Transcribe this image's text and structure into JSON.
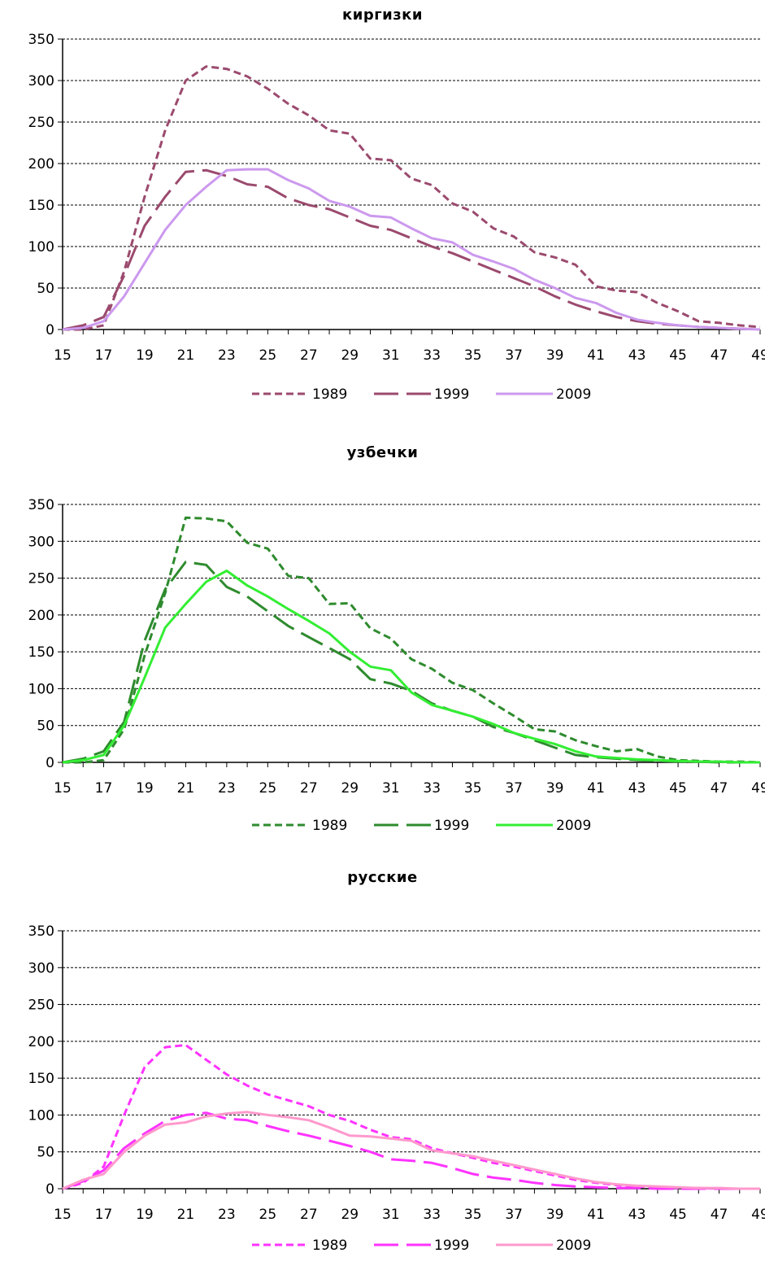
{
  "chart_data": [
    {
      "type": "line",
      "title": "киргизки",
      "ylim": [
        0,
        350
      ],
      "yticks": [
        "0",
        "50",
        "100",
        "150",
        "200",
        "250",
        "300",
        "350"
      ],
      "xlim": [
        15,
        49
      ],
      "xticks": [
        "15",
        "17",
        "19",
        "21",
        "23",
        "25",
        "27",
        "29",
        "31",
        "33",
        "35",
        "37",
        "39",
        "41",
        "43",
        "45",
        "47",
        "49"
      ],
      "grid": true,
      "legend": "bottom",
      "x": [
        15,
        16,
        17,
        18,
        19,
        20,
        21,
        22,
        23,
        24,
        25,
        26,
        27,
        28,
        29,
        30,
        31,
        32,
        33,
        34,
        35,
        36,
        37,
        38,
        39,
        40,
        41,
        42,
        43,
        44,
        45,
        46,
        47,
        48,
        49
      ],
      "series": [
        {
          "name": "1989",
          "color": "#9b4a6e",
          "dash": "dotted",
          "values": [
            0,
            0,
            5,
            70,
            160,
            240,
            300,
            317,
            314,
            305,
            290,
            272,
            258,
            240,
            236,
            206,
            204,
            182,
            174,
            152,
            142,
            122,
            112,
            93,
            87,
            78,
            52,
            47,
            45,
            32,
            22,
            10,
            8,
            5,
            3
          ]
        },
        {
          "name": "1999",
          "color": "#9b4a6e",
          "dash": "long",
          "values": [
            0,
            5,
            15,
            65,
            125,
            160,
            190,
            192,
            185,
            175,
            172,
            158,
            150,
            145,
            135,
            125,
            120,
            110,
            100,
            92,
            82,
            72,
            62,
            52,
            40,
            30,
            22,
            15,
            10,
            7,
            5,
            3,
            2,
            1,
            0
          ]
        },
        {
          "name": "2009",
          "color": "#cc99ee",
          "dash": "solid",
          "values": [
            0,
            2,
            10,
            40,
            80,
            120,
            150,
            172,
            192,
            193,
            193,
            180,
            170,
            155,
            148,
            137,
            135,
            122,
            110,
            105,
            90,
            82,
            73,
            60,
            50,
            38,
            32,
            20,
            12,
            8,
            5,
            3,
            2,
            1,
            0
          ]
        }
      ]
    },
    {
      "type": "line",
      "title": "узбечки",
      "ylim": [
        0,
        350
      ],
      "yticks": [
        "0",
        "50",
        "100",
        "150",
        "200",
        "250",
        "300",
        "350"
      ],
      "xlim": [
        15,
        49
      ],
      "xticks": [
        "15",
        "17",
        "19",
        "21",
        "23",
        "25",
        "27",
        "29",
        "31",
        "33",
        "35",
        "37",
        "39",
        "41",
        "43",
        "45",
        "47",
        "49"
      ],
      "grid": true,
      "legend": "bottom",
      "x": [
        15,
        16,
        17,
        18,
        19,
        20,
        21,
        22,
        23,
        24,
        25,
        26,
        27,
        28,
        29,
        30,
        31,
        32,
        33,
        34,
        35,
        36,
        37,
        38,
        39,
        40,
        41,
        42,
        43,
        44,
        45,
        46,
        47,
        48,
        49
      ],
      "series": [
        {
          "name": "1989",
          "color": "#2e8b2e",
          "dash": "dotted",
          "values": [
            0,
            0,
            3,
            45,
            145,
            230,
            332,
            331,
            327,
            298,
            290,
            253,
            250,
            215,
            216,
            182,
            168,
            140,
            127,
            108,
            98,
            80,
            63,
            45,
            42,
            30,
            22,
            15,
            18,
            8,
            3,
            2,
            1,
            1,
            0
          ]
        },
        {
          "name": "1999",
          "color": "#2e8b2e",
          "dash": "long",
          "values": [
            0,
            5,
            15,
            55,
            165,
            235,
            272,
            268,
            238,
            225,
            205,
            185,
            170,
            155,
            140,
            113,
            107,
            97,
            80,
            70,
            62,
            48,
            40,
            30,
            20,
            10,
            7,
            5,
            3,
            2,
            1,
            1,
            0,
            0,
            0
          ]
        },
        {
          "name": "2009",
          "color": "#33ee33",
          "dash": "solid",
          "values": [
            0,
            3,
            10,
            50,
            115,
            183,
            215,
            245,
            260,
            240,
            225,
            208,
            192,
            175,
            150,
            130,
            125,
            95,
            78,
            70,
            62,
            52,
            40,
            32,
            25,
            15,
            8,
            6,
            4,
            3,
            2,
            1,
            1,
            0,
            0
          ]
        }
      ]
    },
    {
      "type": "line",
      "title": "русские",
      "ylim": [
        0,
        350
      ],
      "yticks": [
        "0",
        "50",
        "100",
        "150",
        "200",
        "250",
        "300",
        "350"
      ],
      "xlim": [
        15,
        49
      ],
      "xticks": [
        "15",
        "17",
        "19",
        "21",
        "23",
        "25",
        "27",
        "29",
        "31",
        "33",
        "35",
        "37",
        "39",
        "41",
        "43",
        "45",
        "47",
        "49"
      ],
      "grid": true,
      "legend": "bottom",
      "x": [
        15,
        16,
        17,
        18,
        19,
        20,
        21,
        22,
        23,
        24,
        25,
        26,
        27,
        28,
        29,
        30,
        31,
        32,
        33,
        34,
        35,
        36,
        37,
        38,
        39,
        40,
        41,
        42,
        43,
        44,
        45,
        46,
        47,
        48,
        49
      ],
      "series": [
        {
          "name": "1989",
          "color": "#ff33ff",
          "dash": "dotted",
          "values": [
            0,
            8,
            30,
            100,
            165,
            192,
            195,
            175,
            155,
            140,
            128,
            120,
            112,
            100,
            92,
            80,
            70,
            67,
            55,
            48,
            42,
            35,
            30,
            24,
            18,
            12,
            8,
            5,
            3,
            2,
            1,
            1,
            0,
            0,
            0
          ]
        },
        {
          "name": "1999",
          "color": "#ff33ff",
          "dash": "long",
          "values": [
            0,
            10,
            25,
            55,
            75,
            92,
            100,
            103,
            95,
            93,
            85,
            78,
            72,
            65,
            58,
            50,
            40,
            38,
            35,
            28,
            20,
            15,
            12,
            8,
            5,
            3,
            2,
            1,
            1,
            0,
            0,
            0,
            0,
            0,
            0
          ]
        },
        {
          "name": "2009",
          "color": "#ff99cc",
          "dash": "solid",
          "values": [
            0,
            12,
            20,
            50,
            72,
            87,
            90,
            98,
            102,
            104,
            100,
            97,
            93,
            83,
            72,
            71,
            68,
            65,
            52,
            48,
            44,
            38,
            32,
            26,
            20,
            14,
            9,
            6,
            4,
            3,
            2,
            1,
            1,
            0,
            0
          ]
        }
      ]
    }
  ]
}
